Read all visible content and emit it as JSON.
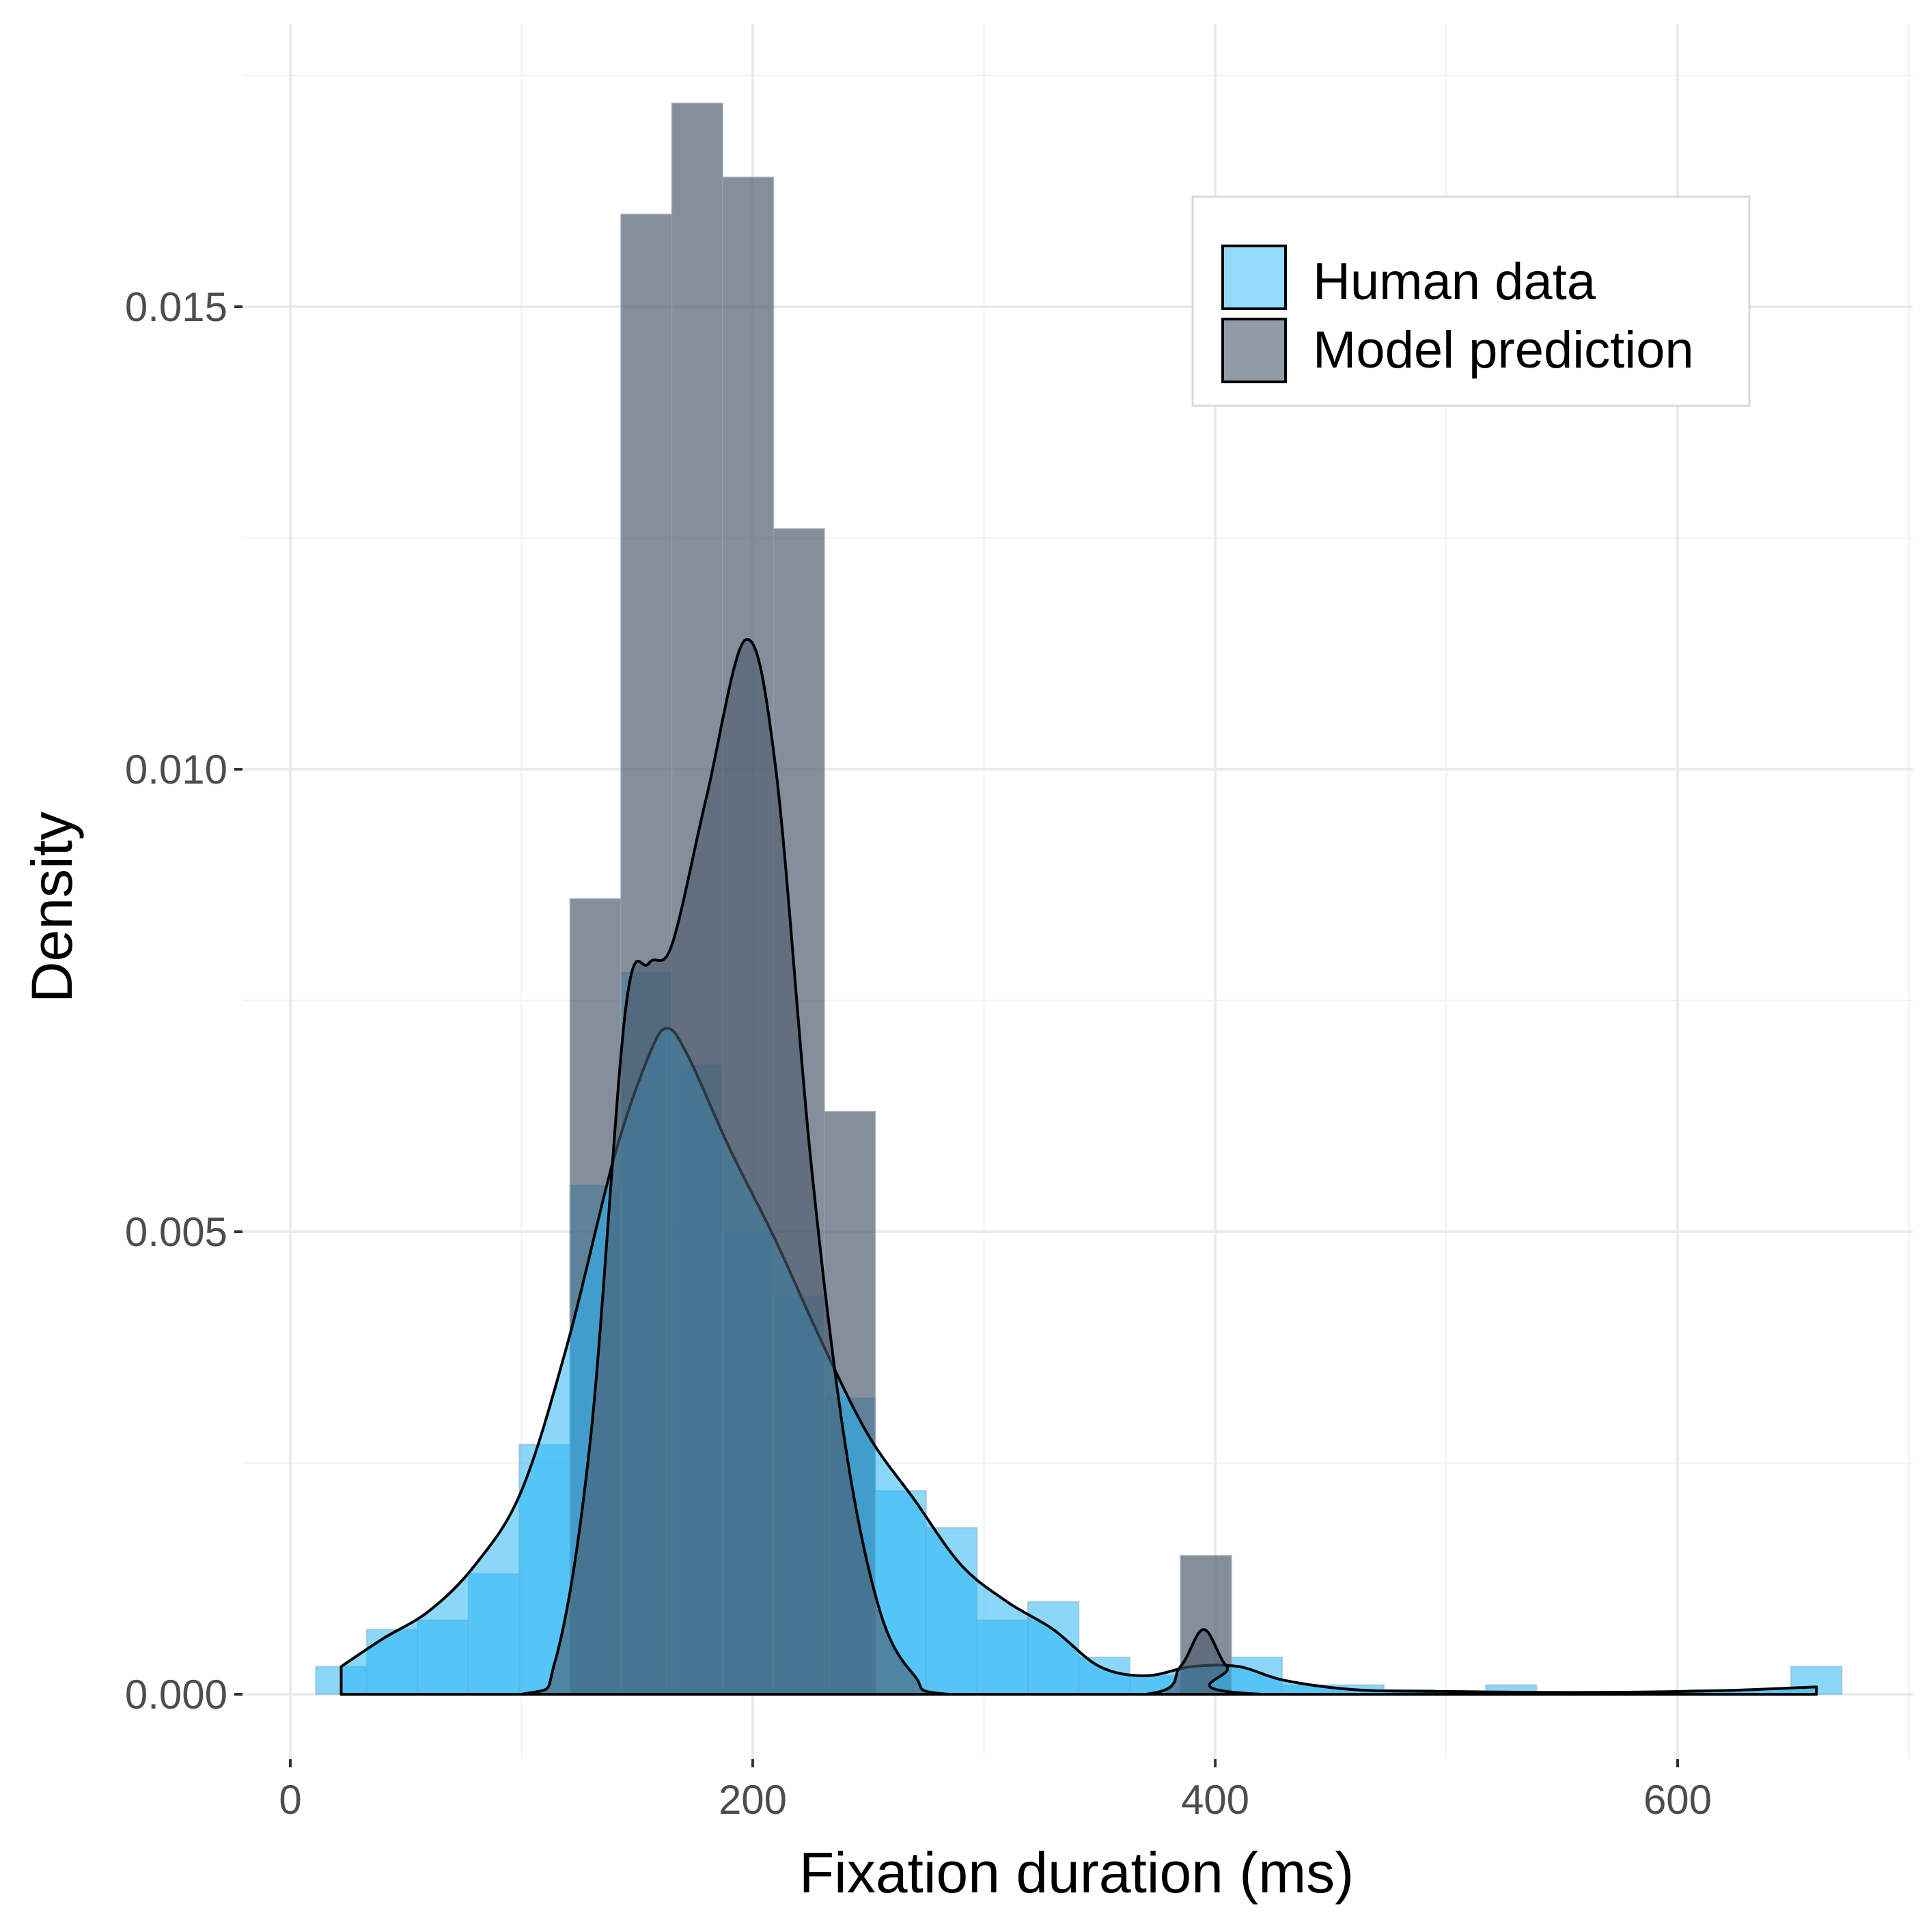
{
  "chart_data": {
    "type": "histogram",
    "xlabel": "Fixation duration (ms)",
    "ylabel": "Density",
    "xlim": [
      -20,
      700
    ],
    "ylim": [
      -0.0008,
      0.0183
    ],
    "x_ticks": [
      0,
      200,
      400,
      600
    ],
    "y_ticks": [
      0.0,
      0.005,
      0.01,
      0.015
    ],
    "x_tick_labels": [
      "0",
      "200",
      "400",
      "600"
    ],
    "y_tick_labels": [
      "0.000",
      "0.005",
      "0.010",
      "0.015"
    ],
    "grid": true,
    "legend_position": "top-right",
    "bin_width": 22,
    "series": [
      {
        "name": "Human data",
        "color": "#29B6F6",
        "bins": [
          {
            "x0": 11,
            "x1": 33,
            "density": 0.0003
          },
          {
            "x0": 33,
            "x1": 55,
            "density": 0.0007
          },
          {
            "x0": 55,
            "x1": 77,
            "density": 0.0008
          },
          {
            "x0": 77,
            "x1": 99,
            "density": 0.0013
          },
          {
            "x0": 99,
            "x1": 121,
            "density": 0.0027
          },
          {
            "x0": 121,
            "x1": 143,
            "density": 0.0055
          },
          {
            "x0": 143,
            "x1": 165,
            "density": 0.0078
          },
          {
            "x0": 165,
            "x1": 187,
            "density": 0.0068
          },
          {
            "x0": 187,
            "x1": 209,
            "density": 0.005
          },
          {
            "x0": 209,
            "x1": 231,
            "density": 0.0043
          },
          {
            "x0": 231,
            "x1": 253,
            "density": 0.0032
          },
          {
            "x0": 253,
            "x1": 275,
            "density": 0.0022
          },
          {
            "x0": 275,
            "x1": 297,
            "density": 0.0018
          },
          {
            "x0": 297,
            "x1": 319,
            "density": 0.0008
          },
          {
            "x0": 319,
            "x1": 341,
            "density": 0.001
          },
          {
            "x0": 341,
            "x1": 363,
            "density": 0.0004
          },
          {
            "x0": 363,
            "x1": 385,
            "density": 0.0002
          },
          {
            "x0": 385,
            "x1": 407,
            "density": 0.0003
          },
          {
            "x0": 407,
            "x1": 429,
            "density": 0.0004
          },
          {
            "x0": 429,
            "x1": 451,
            "density": 0.0001
          },
          {
            "x0": 451,
            "x1": 473,
            "density": 0.0001
          },
          {
            "x0": 473,
            "x1": 495,
            "density": 5e-05
          },
          {
            "x0": 495,
            "x1": 517,
            "density": 2e-05
          },
          {
            "x0": 517,
            "x1": 539,
            "density": 0.0001
          },
          {
            "x0": 539,
            "x1": 561,
            "density": 2e-05
          },
          {
            "x0": 561,
            "x1": 583,
            "density": 2e-05
          },
          {
            "x0": 583,
            "x1": 605,
            "density": 2e-05
          },
          {
            "x0": 605,
            "x1": 627,
            "density": 5e-05
          },
          {
            "x0": 627,
            "x1": 649,
            "density": 5e-05
          },
          {
            "x0": 649,
            "x1": 671,
            "density": 0.0003
          }
        ],
        "density_curve": [
          [
            22,
            0.0003
          ],
          [
            40,
            0.0006
          ],
          [
            60,
            0.0009
          ],
          [
            80,
            0.0014
          ],
          [
            100,
            0.0022
          ],
          [
            120,
            0.0038
          ],
          [
            140,
            0.0058
          ],
          [
            155,
            0.0069
          ],
          [
            163,
            0.0072
          ],
          [
            172,
            0.0069
          ],
          [
            190,
            0.0059
          ],
          [
            210,
            0.0049
          ],
          [
            230,
            0.0038
          ],
          [
            250,
            0.0028
          ],
          [
            270,
            0.0021
          ],
          [
            290,
            0.0014
          ],
          [
            310,
            0.001
          ],
          [
            330,
            0.0007
          ],
          [
            350,
            0.0003
          ],
          [
            370,
            0.0002
          ],
          [
            390,
            0.0003
          ],
          [
            410,
            0.0003
          ],
          [
            430,
            0.00015
          ],
          [
            460,
            5e-05
          ],
          [
            500,
            3e-05
          ],
          [
            560,
            2e-05
          ],
          [
            620,
            4e-05
          ],
          [
            660,
            8e-05
          ]
        ]
      },
      {
        "name": "Model prediction",
        "color": "#4A5A6B",
        "bins": [
          {
            "x0": 121,
            "x1": 143,
            "density": 0.0086
          },
          {
            "x0": 143,
            "x1": 165,
            "density": 0.016
          },
          {
            "x0": 165,
            "x1": 187,
            "density": 0.0172
          },
          {
            "x0": 187,
            "x1": 209,
            "density": 0.0164
          },
          {
            "x0": 209,
            "x1": 231,
            "density": 0.0126
          },
          {
            "x0": 231,
            "x1": 253,
            "density": 0.0063
          },
          {
            "x0": 385,
            "x1": 407,
            "density": 0.0015
          }
        ],
        "density_curve": [
          [
            22,
            0.0
          ],
          [
            100,
            0.0
          ],
          [
            115,
            0.0004
          ],
          [
            130,
            0.0028
          ],
          [
            145,
            0.0074
          ],
          [
            155,
            0.0079
          ],
          [
            165,
            0.0081
          ],
          [
            180,
            0.0097
          ],
          [
            197,
            0.0114
          ],
          [
            210,
            0.01
          ],
          [
            225,
            0.0058
          ],
          [
            240,
            0.0027
          ],
          [
            255,
            0.0009
          ],
          [
            270,
            0.0002
          ],
          [
            285,
            0.0
          ],
          [
            370,
            0.0
          ],
          [
            385,
            0.0003
          ],
          [
            395,
            0.0007
          ],
          [
            405,
            0.0003
          ],
          [
            420,
            0.0
          ],
          [
            660,
            0.0
          ]
        ]
      }
    ]
  }
}
